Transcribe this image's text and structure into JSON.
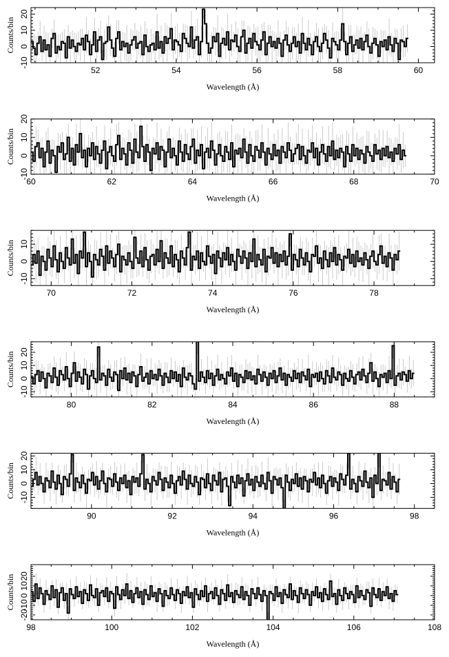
{
  "chart_data": [
    {
      "type": "line",
      "xlabel": "Wavelength (Å)",
      "ylabel": "Counts/bin",
      "xlim": [
        50.4,
        60.4
      ],
      "ylim": [
        -10,
        24
      ],
      "xticks": [
        52,
        54,
        56,
        58,
        60
      ],
      "yticks": [
        -10,
        0,
        10,
        20
      ],
      "bin_width": 0.05,
      "series": [
        {
          "values": [
            3,
            -1,
            -5,
            2,
            6,
            -3,
            4,
            -2,
            1,
            -6,
            5,
            8,
            -4,
            0,
            -2,
            3,
            2,
            -7,
            6,
            -1,
            4,
            0,
            -3,
            2,
            1,
            5,
            -2,
            7,
            3,
            -5,
            1,
            9,
            -3,
            4,
            6,
            -8,
            2,
            3,
            12,
            4,
            -1,
            -6,
            5,
            9,
            -2,
            3,
            0,
            2,
            -4,
            1,
            4,
            6,
            -1,
            2,
            3,
            -5,
            7,
            0,
            -3,
            1,
            2,
            -2,
            9,
            -1,
            3,
            -4,
            6,
            2,
            5,
            11,
            -2,
            4,
            3,
            1,
            -3,
            8,
            5,
            2,
            0,
            12,
            -1,
            4,
            6,
            -5,
            3,
            23,
            14,
            2,
            -4,
            -1,
            6,
            3,
            8,
            -6,
            2,
            5,
            1,
            9,
            -2,
            4,
            3,
            7,
            0,
            -3,
            6,
            10,
            -4,
            2,
            5,
            -1,
            8,
            3,
            1,
            -2,
            4,
            9,
            -5,
            2,
            6,
            0,
            3,
            -1,
            5,
            2,
            -6,
            4,
            7,
            1,
            -3,
            2,
            6,
            0,
            3,
            -4,
            8,
            2,
            -2,
            5,
            1,
            -5,
            3,
            6,
            0,
            -3,
            2,
            8,
            4,
            -1,
            -7,
            5,
            3,
            1,
            -2,
            4,
            14,
            3,
            -5,
            2,
            6,
            -3,
            1,
            4,
            -1,
            5,
            -2,
            3,
            7,
            0,
            -4,
            2,
            5,
            1,
            -6,
            3,
            0,
            4,
            -2,
            6,
            1,
            -3,
            5,
            2,
            -8,
            4,
            3,
            0,
            5
          ]
        }
      ]
    },
    {
      "type": "line",
      "xlabel": "Wavelength (Å)",
      "ylabel": "Counts/bin",
      "xlim": [
        60,
        70
      ],
      "ylim": [
        -10,
        20
      ],
      "xticks": [
        60,
        62,
        64,
        66,
        68,
        70
      ],
      "yticks": [
        -10,
        0,
        10,
        20
      ],
      "bin_width": 0.05,
      "series": [
        {
          "values": [
            2,
            -3,
            5,
            7,
            -1,
            4,
            -6,
            2,
            8,
            -4,
            3,
            0,
            -9,
            5,
            2,
            7,
            -2,
            1,
            10,
            -3,
            4,
            -5,
            6,
            2,
            12,
            -1,
            3,
            -6,
            4,
            0,
            7,
            -2,
            5,
            1,
            -4,
            3,
            8,
            -7,
            2,
            5,
            0,
            -3,
            6,
            11,
            -2,
            4,
            1,
            -5,
            7,
            3,
            -4,
            9,
            2,
            -1,
            16,
            5,
            -3,
            6,
            2,
            -8,
            4,
            1,
            7,
            -2,
            5,
            3,
            -6,
            2,
            9,
            -1,
            4,
            0,
            -5,
            8,
            2,
            -3,
            6,
            1,
            -2,
            5,
            9,
            -4,
            3,
            0,
            6,
            -7,
            2,
            4,
            -1,
            8,
            3,
            -5,
            1,
            6,
            0,
            -3,
            5,
            2,
            -2,
            7,
            -6,
            3,
            1,
            4,
            -1,
            9,
            2,
            -4,
            6,
            0,
            -3,
            5,
            3,
            -1,
            7,
            2,
            -5,
            4,
            1,
            -2,
            6,
            0,
            3,
            -4,
            5,
            2,
            -1,
            7,
            3,
            -3,
            1,
            4,
            6,
            -2,
            5,
            0,
            -4,
            3,
            2,
            7,
            -1,
            4,
            -5,
            2,
            6,
            1,
            -3,
            5,
            0,
            8,
            -2,
            3,
            -1,
            4,
            2,
            -6,
            5,
            1,
            -3,
            6,
            0,
            4,
            -2,
            3,
            1,
            -4,
            5,
            2,
            0,
            -3,
            6,
            1,
            3,
            -2,
            4,
            0,
            5,
            -1,
            2,
            -3,
            4,
            1,
            6,
            -2,
            3,
            0
          ]
        }
      ]
    },
    {
      "type": "line",
      "xlabel": "Wavelength (Å)",
      "ylabel": "Counts/bin",
      "xlim": [
        69.5,
        79.5
      ],
      "ylim": [
        -14,
        18
      ],
      "xticks": [
        70,
        72,
        74,
        76,
        78
      ],
      "yticks": [
        -10,
        0,
        10
      ],
      "bin_width": 0.05,
      "series": [
        {
          "values": [
            -2,
            4,
            -1,
            6,
            -8,
            3,
            0,
            -5,
            7,
            2,
            -3,
            9,
            1,
            -6,
            5,
            0,
            -4,
            8,
            2,
            -2,
            13,
            -1,
            4,
            -7,
            6,
            2,
            17,
            -3,
            5,
            0,
            -9,
            4,
            1,
            -2,
            7,
            3,
            -5,
            9,
            -1,
            6,
            2,
            -3,
            4,
            10,
            -6,
            3,
            1,
            -2,
            5,
            0,
            -4,
            14,
            2,
            -1,
            6,
            -3,
            8,
            1,
            -5,
            3,
            4,
            -2,
            7,
            0,
            12,
            -4,
            5,
            2,
            -1,
            9,
            -3,
            4,
            1,
            -6,
            6,
            2,
            -2,
            8,
            17,
            -5,
            3,
            1,
            6,
            -4,
            5,
            0,
            -2,
            9,
            3,
            -1,
            4,
            -7,
            6,
            2,
            -3,
            5,
            1,
            8,
            -2,
            4,
            0,
            -5,
            7,
            3,
            -1,
            6,
            2,
            -4,
            5,
            0,
            13,
            -3,
            4,
            1,
            -2,
            7,
            -6,
            3,
            2,
            8,
            -1,
            5,
            -3,
            4,
            0,
            6,
            -2,
            3,
            16,
            -5,
            4,
            1,
            -3,
            7,
            2,
            -2,
            5,
            0,
            -6,
            4,
            3,
            9,
            -1,
            2,
            -4,
            6,
            1,
            -3,
            5,
            0,
            8,
            -2,
            4,
            1,
            -5,
            3,
            2,
            7,
            -1,
            4,
            -3,
            6,
            0,
            2,
            -2,
            5,
            1,
            -4,
            3,
            6,
            0,
            -2,
            4,
            9,
            -1,
            3,
            -3,
            5,
            2,
            -5,
            4,
            1,
            6
          ]
        }
      ]
    },
    {
      "type": "line",
      "xlabel": "Wavelength (Å)",
      "ylabel": "Counts/bin",
      "xlim": [
        79,
        89
      ],
      "ylim": [
        -14,
        28
      ],
      "xticks": [
        80,
        82,
        84,
        86,
        88
      ],
      "yticks": [
        -10,
        0,
        10,
        20
      ],
      "bin_width": 0.05,
      "series": [
        {
          "values": [
            1,
            -4,
            3,
            6,
            -2,
            5,
            0,
            -7,
            4,
            2,
            -3,
            8,
            1,
            -5,
            6,
            3,
            -1,
            9,
            0,
            -6,
            4,
            12,
            -2,
            5,
            1,
            -4,
            7,
            3,
            -8,
            2,
            6,
            0,
            -3,
            24,
            -1,
            4,
            2,
            -5,
            7,
            1,
            -2,
            5,
            3,
            -9,
            6,
            0,
            8,
            -1,
            4,
            -3,
            5,
            2,
            -6,
            3,
            9,
            -2,
            1,
            4,
            -4,
            6,
            0,
            3,
            -1,
            7,
            2,
            -5,
            4,
            1,
            -3,
            6,
            0,
            5,
            -2,
            3,
            -6,
            8,
            1,
            -1,
            4,
            2,
            -4,
            -8,
            30,
            -2,
            5,
            1,
            -3,
            6,
            0,
            4,
            -5,
            2,
            7,
            -1,
            3,
            0,
            -4,
            5,
            2,
            8,
            -2,
            4,
            -6,
            3,
            1,
            -3,
            6,
            0,
            5,
            -1,
            2,
            -4,
            7,
            3,
            -2,
            5,
            1,
            -5,
            4,
            0,
            6,
            -3,
            2,
            8,
            -1,
            4,
            -5,
            3,
            1,
            -2,
            6,
            0,
            4,
            -3,
            5,
            2,
            -1,
            7,
            -6,
            3,
            1,
            4,
            -2,
            5,
            0,
            -4,
            6,
            2,
            -3,
            8,
            1,
            -1,
            5,
            3,
            -5,
            4,
            0,
            -2,
            6,
            1,
            -4,
            3,
            5,
            -1,
            7,
            2,
            -3,
            4,
            12,
            -2,
            5,
            0,
            -6,
            3,
            1,
            4,
            -3,
            6,
            0,
            25,
            -5,
            2,
            4,
            -1,
            5,
            3,
            -2,
            6,
            0,
            4
          ]
        }
      ]
    },
    {
      "type": "line",
      "xlabel": "Wavelength (Å)",
      "ylabel": "Counts/bin",
      "xlim": [
        88.5,
        98.5
      ],
      "ylim": [
        -18,
        22
      ],
      "xticks": [
        90,
        92,
        94,
        96,
        98
      ],
      "yticks": [
        -10,
        0,
        10,
        20
      ],
      "bin_width": 0.05,
      "series": [
        {
          "values": [
            -2,
            3,
            8,
            -1,
            5,
            0,
            -6,
            4,
            2,
            -3,
            9,
            1,
            -4,
            6,
            0,
            -8,
            5,
            3,
            -2,
            7,
            21,
            -5,
            4,
            1,
            -3,
            6,
            0,
            -7,
            3,
            2,
            8,
            -1,
            5,
            -4,
            2,
            9,
            0,
            -6,
            4,
            3,
            -2,
            7,
            1,
            -5,
            4,
            0,
            6,
            -3,
            2,
            -8,
            5,
            1,
            4,
            -2,
            7,
            21,
            -4,
            3,
            0,
            -6,
            5,
            2,
            -1,
            8,
            3,
            -5,
            4,
            1,
            -3,
            6,
            0,
            -7,
            2,
            5,
            -1,
            9,
            3,
            -4,
            6,
            0,
            -2,
            5,
            1,
            -8,
            4,
            3,
            -3,
            7,
            0,
            -5,
            6,
            2,
            -1,
            8,
            -6,
            3,
            4,
            -2,
            -16,
            5,
            1,
            -3,
            6,
            0,
            4,
            -9,
            2,
            7,
            -1,
            3,
            -5,
            5,
            1,
            -2,
            6,
            0,
            -4,
            8,
            2,
            -7,
            5,
            3,
            -1,
            4,
            -3,
            -18,
            6,
            1,
            -5,
            3,
            0,
            7,
            -2,
            4,
            -4,
            5,
            2,
            -6,
            3,
            1,
            8,
            -1,
            4,
            -3,
            6,
            0,
            -7,
            2,
            5,
            -2,
            4,
            1,
            -5,
            7,
            3,
            -1,
            6,
            22,
            -4,
            3,
            0,
            -6,
            5,
            2,
            -2,
            9,
            1,
            -3,
            4,
            -10,
            6,
            0,
            23,
            -5,
            3,
            2,
            -1,
            8,
            -4,
            5,
            1,
            -6,
            3
          ]
        }
      ]
    },
    {
      "type": "line",
      "xlabel": "Wavelength (Å)",
      "ylabel": "Counts/bin",
      "xlim": [
        98,
        108
      ],
      "ylim": [
        -25,
        32
      ],
      "xticks": [
        98,
        100,
        102,
        104,
        106,
        108
      ],
      "yticks": [
        -20,
        -10,
        0,
        10,
        20
      ],
      "bin_width": 0.05,
      "series": [
        {
          "values": [
            4,
            -6,
            12,
            -3,
            8,
            2,
            -9,
            5,
            1,
            -4,
            10,
            -2,
            6,
            -12,
            3,
            8,
            -5,
            2,
            -18,
            7,
            1,
            -3,
            9,
            -1,
            4,
            -8,
            6,
            2,
            -5,
            11,
            0,
            -2,
            7,
            -10,
            3,
            5,
            -1,
            8,
            -6,
            4,
            2,
            -13,
            9,
            1,
            -4,
            6,
            0,
            12,
            -3,
            5,
            -7,
            2,
            8,
            -2,
            4,
            -9,
            6,
            1,
            -4,
            10,
            -1,
            3,
            -6,
            7,
            2,
            -11,
            5,
            0,
            -3,
            8,
            1,
            -5,
            6,
            2,
            -8,
            4,
            0,
            9,
            -2,
            3,
            -12,
            7,
            1,
            -4,
            5,
            -1,
            10,
            -6,
            2,
            4,
            -3,
            8,
            0,
            -9,
            6,
            2,
            -5,
            11,
            -1,
            3,
            -7,
            5,
            1,
            -2,
            9,
            -4,
            4,
            0,
            -10,
            7,
            2,
            -3,
            8,
            1,
            -6,
            5,
            0,
            -28,
            4,
            2,
            -5,
            9,
            -1,
            3,
            -8,
            6,
            1,
            -2,
            12,
            -4,
            5,
            0,
            -7,
            8,
            2,
            -3,
            6,
            1,
            -10,
            4,
            0,
            9,
            -2,
            3,
            -6,
            7,
            1,
            -4,
            15,
            -1,
            2,
            -9,
            6,
            0,
            -5,
            8,
            2,
            -3,
            4,
            1,
            -7,
            10,
            -2,
            5,
            0,
            -4,
            6,
            3,
            -11,
            8,
            1,
            -2,
            7,
            -5,
            4,
            0,
            9,
            -3,
            2,
            -6,
            5,
            1
          ]
        }
      ]
    }
  ]
}
